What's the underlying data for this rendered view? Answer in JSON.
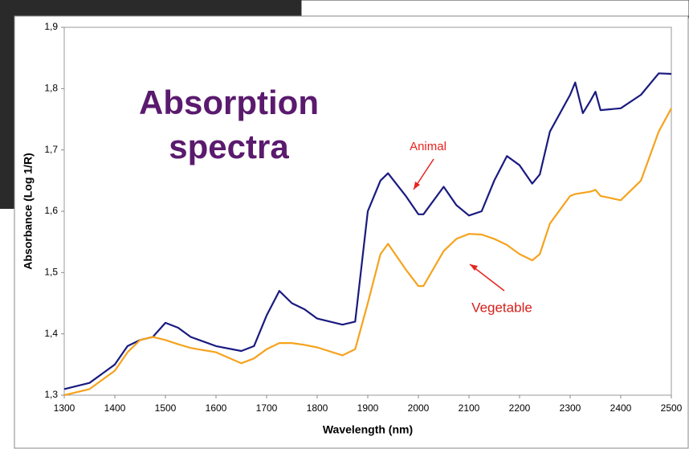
{
  "chart_data": {
    "type": "line",
    "title": "Absorption spectra",
    "xlabel": "Wavelength (nm)",
    "ylabel": "Absorbance (Log 1/R)",
    "x": [
      1300,
      1350,
      1400,
      1425,
      1450,
      1475,
      1500,
      1525,
      1550,
      1600,
      1650,
      1675,
      1700,
      1725,
      1750,
      1775,
      1800,
      1850,
      1875,
      1900,
      1925,
      1940,
      1975,
      2000,
      2010,
      2050,
      2075,
      2100,
      2125,
      2150,
      2175,
      2200,
      2225,
      2240,
      2260,
      2300,
      2310,
      2325,
      2340,
      2350,
      2360,
      2400,
      2440,
      2475,
      2500
    ],
    "series": [
      {
        "name": "Animal",
        "color": "#1a1a80",
        "label_color": "#e8231e",
        "values": [
          1.31,
          1.32,
          1.35,
          1.38,
          1.39,
          1.395,
          1.418,
          1.41,
          1.395,
          1.38,
          1.372,
          1.38,
          1.43,
          1.47,
          1.45,
          1.44,
          1.425,
          1.415,
          1.42,
          1.6,
          1.65,
          1.662,
          1.625,
          1.595,
          1.595,
          1.64,
          1.61,
          1.593,
          1.6,
          1.65,
          1.69,
          1.675,
          1.645,
          1.66,
          1.73,
          1.79,
          1.81,
          1.76,
          1.78,
          1.795,
          1.765,
          1.768,
          1.79,
          1.825,
          1.824
        ]
      },
      {
        "name": "Vegetable",
        "color": "#f5a31e",
        "label_color": "#d41f1a",
        "values": [
          1.3,
          1.31,
          1.34,
          1.37,
          1.39,
          1.395,
          1.39,
          1.383,
          1.377,
          1.37,
          1.352,
          1.36,
          1.375,
          1.385,
          1.385,
          1.382,
          1.378,
          1.365,
          1.375,
          1.45,
          1.53,
          1.547,
          1.505,
          1.478,
          1.478,
          1.535,
          1.555,
          1.563,
          1.562,
          1.555,
          1.545,
          1.53,
          1.52,
          1.53,
          1.58,
          1.625,
          1.628,
          1.63,
          1.632,
          1.635,
          1.625,
          1.618,
          1.65,
          1.73,
          1.768
        ]
      }
    ],
    "xlim": [
      1300,
      2500
    ],
    "xticks": [
      1300,
      1400,
      1500,
      1600,
      1700,
      1800,
      1900,
      2000,
      2100,
      2200,
      2300,
      2400,
      2500
    ],
    "ylim": [
      1.3,
      1.9
    ],
    "yticks": [
      {
        "value": 1.3,
        "label": "1,3"
      },
      {
        "value": 1.4,
        "label": "1,4"
      },
      {
        "value": 1.5,
        "label": "1,5"
      },
      {
        "value": 1.6,
        "label": "1,6"
      },
      {
        "value": 1.7,
        "label": "1,7"
      },
      {
        "value": 1.8,
        "label": "1,8"
      },
      {
        "value": 1.9,
        "label": "1,9"
      }
    ],
    "grid": false
  }
}
